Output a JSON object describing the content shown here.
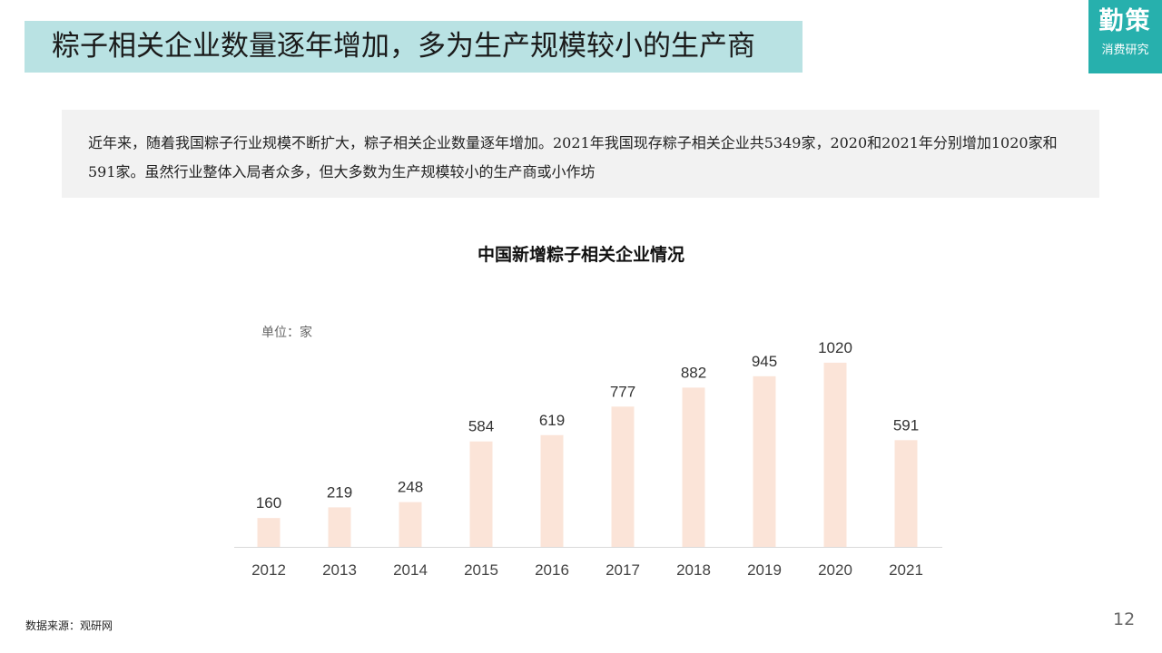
{
  "header": {
    "title": "粽子相关企业数量逐年增加，多为生产规模较小的生产商",
    "brand_main": "勤策",
    "brand_sub": "消费研究"
  },
  "summary": {
    "text": "近年来，随着我国粽子行业规模不断扩大，粽子相关企业数量逐年增加。2021年我国现存粽子相关企业共5349家，2020和2021年分别增加1020家和591家。虽然行业整体入局者众多，但大多数为生产规模较小的生产商或小作坊"
  },
  "chart_data": {
    "type": "bar",
    "title": "中国新增粽子相关企业情况",
    "unit_label": "单位：家",
    "categories": [
      "2012",
      "2013",
      "2014",
      "2015",
      "2016",
      "2017",
      "2018",
      "2019",
      "2020",
      "2021"
    ],
    "values": [
      160,
      219,
      248,
      584,
      619,
      777,
      882,
      945,
      1020,
      591
    ],
    "ylim": [
      0,
      1120
    ],
    "bar_color": "#fbe4d8",
    "axis_color": "#d9d9d9",
    "grid": false,
    "legend": "none"
  },
  "footer": {
    "source": "数据来源：观研网",
    "page_number": "12"
  }
}
